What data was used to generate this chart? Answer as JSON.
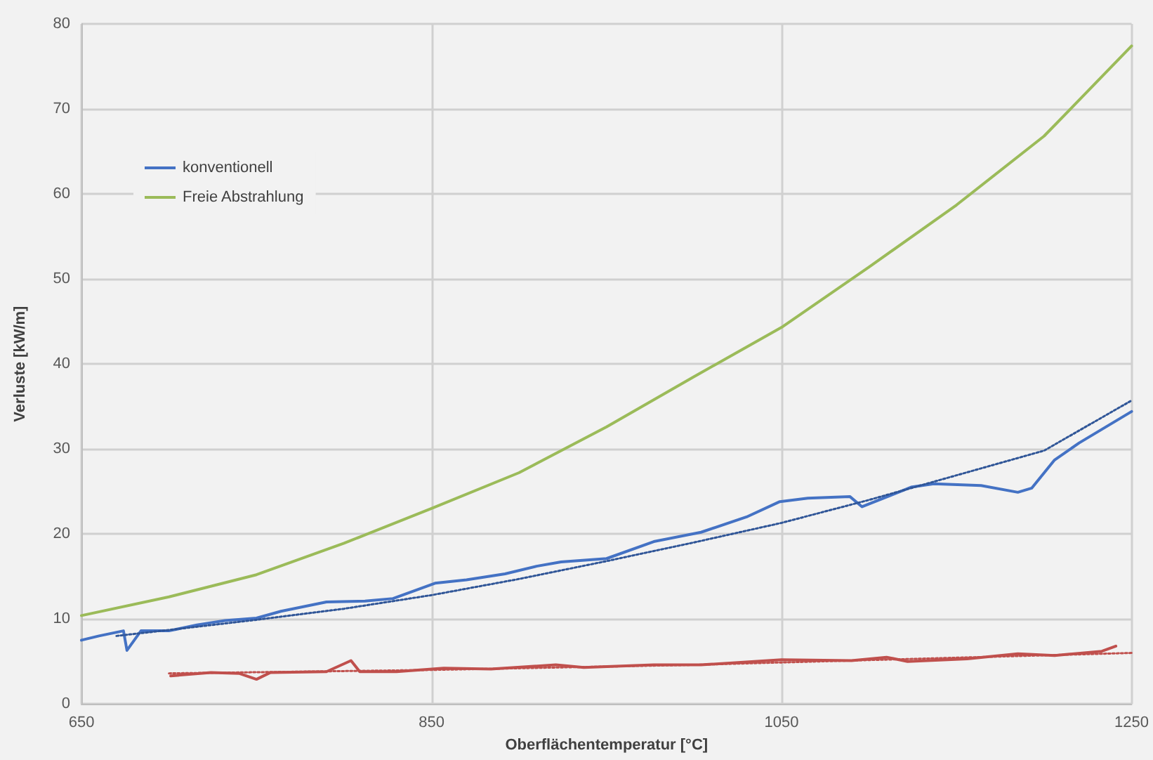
{
  "chart_data": {
    "type": "line",
    "xlabel": "Oberflächentemperatur [°C]",
    "ylabel": "Verluste [kW/m]",
    "xlim": [
      650,
      1250
    ],
    "xticks": [
      650,
      850,
      1050,
      1250
    ],
    "ylim": [
      0,
      80
    ],
    "yticks": [
      0,
      10,
      20,
      30,
      40,
      50,
      60,
      70,
      80
    ],
    "grid": true,
    "legend": "top left",
    "marker": "none",
    "line_style": "solid",
    "series": [
      {
        "name": "konventionell",
        "color": "#4472c4",
        "x": [
          650,
          660,
          674,
          676,
          684,
          700,
          716,
          732,
          750,
          764,
          790,
          812,
          828,
          852,
          870,
          892,
          910,
          924,
          950,
          977,
          1004,
          1030,
          1049,
          1065,
          1089,
          1096,
          1124,
          1137,
          1164,
          1185,
          1193,
          1206,
          1220,
          1250
        ],
        "values": [
          7.5,
          8.0,
          8.6,
          6.3,
          8.6,
          8.6,
          9.3,
          9.8,
          10.1,
          10.9,
          12.0,
          12.1,
          12.4,
          14.2,
          14.6,
          15.3,
          16.2,
          16.7,
          17.1,
          19.1,
          20.2,
          22.0,
          23.8,
          24.2,
          24.4,
          23.2,
          25.5,
          25.9,
          25.7,
          24.9,
          25.4,
          28.7,
          30.7,
          34.4
        ]
      },
      {
        "color": "#c0504d",
        "x": [
          701,
          724,
          740,
          750,
          758,
          790,
          804,
          809,
          830,
          857,
          884,
          921,
          937,
          977,
          1004,
          1050,
          1090,
          1110,
          1122,
          1156,
          1185,
          1206,
          1233,
          1241
        ],
        "values": [
          3.3,
          3.7,
          3.6,
          2.9,
          3.7,
          3.8,
          5.1,
          3.8,
          3.8,
          4.2,
          4.1,
          4.6,
          4.3,
          4.6,
          4.6,
          5.2,
          5.1,
          5.5,
          5.0,
          5.3,
          5.9,
          5.7,
          6.2,
          6.8
        ]
      },
      {
        "name": "Freie Abstrahlung",
        "color": "#9bbb59",
        "x": [
          650,
          700,
          750,
          800,
          850,
          900,
          950,
          1000,
          1050,
          1100,
          1150,
          1200,
          1250
        ],
        "values": [
          10.4,
          12.6,
          15.2,
          18.9,
          23.0,
          27.2,
          32.6,
          38.5,
          44.3,
          51.4,
          58.7,
          66.8,
          77.4
        ]
      },
      {
        "color": "#2f5597",
        "line_style": "dotted",
        "x": [
          670,
          700,
          750,
          800,
          850,
          900,
          950,
          1000,
          1050,
          1100,
          1150,
          1200,
          1250
        ],
        "values": [
          8.0,
          8.7,
          9.9,
          11.2,
          12.8,
          14.7,
          16.8,
          19.0,
          21.3,
          24.0,
          26.9,
          29.8,
          35.7
        ]
      },
      {
        "color": "#c0504d",
        "line_style": "dotted",
        "x": [
          700,
          850,
          1000,
          1250
        ],
        "values": [
          3.6,
          4.0,
          4.6,
          6.0
        ]
      }
    ]
  }
}
